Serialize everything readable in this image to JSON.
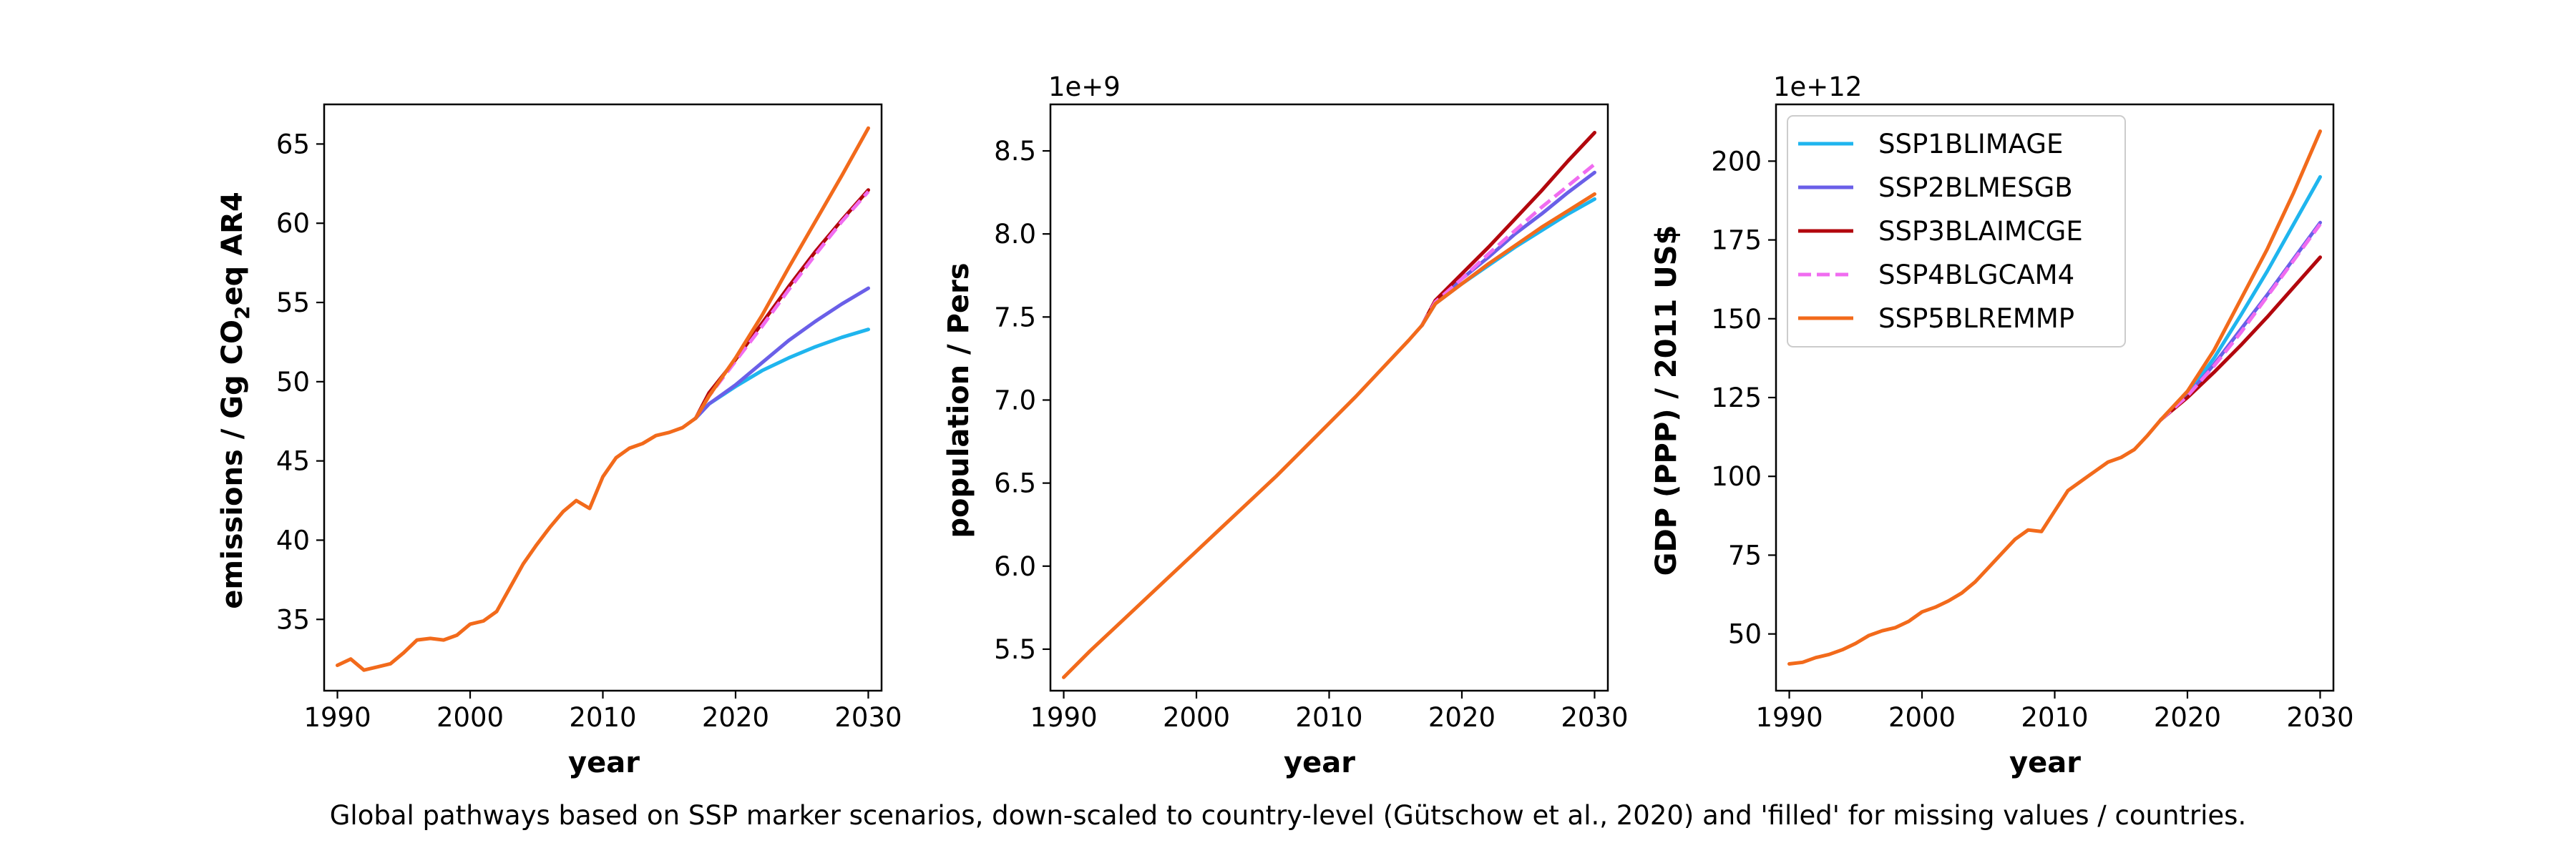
{
  "figure": {
    "caption": "Global pathways based on SSP marker scenarios, down-scaled to country-level (Gütschow et al., 2020) and 'filled' for missing values / countries."
  },
  "legend": {
    "placement": "top-left of third panel",
    "entries": [
      {
        "label": "SSP1BLIMAGE",
        "color": "#1fb5ee",
        "style": "solid"
      },
      {
        "label": "SSP2BLMESGB",
        "color": "#6a5fe8",
        "style": "solid"
      },
      {
        "label": "SSP3BLAIMCGE",
        "color": "#b2070d",
        "style": "solid"
      },
      {
        "label": "SSP4BLGCAM4",
        "color": "#f06cf0",
        "style": "dashed"
      },
      {
        "label": "SSP5BLREMMP",
        "color": "#f26a1b",
        "style": "solid"
      }
    ]
  },
  "chart_data": [
    {
      "type": "line",
      "xlabel": "year",
      "ylabel": "emissions / Gg CO2eq AR4",
      "ylabel_parts": {
        "before": "emissions / Gg CO",
        "sub": "2",
        "after": "eq AR4"
      },
      "xlim": [
        1989,
        2031
      ],
      "ylim": [
        30.5,
        67.5
      ],
      "xticks": [
        1990,
        2000,
        2010,
        2020,
        2030
      ],
      "yticks": [
        35,
        40,
        45,
        50,
        55,
        60,
        65
      ],
      "grid": false,
      "history": {
        "x": [
          1990,
          1991,
          1992,
          1993,
          1994,
          1995,
          1996,
          1997,
          1998,
          1999,
          2000,
          2001,
          2002,
          2003,
          2004,
          2005,
          2006,
          2007,
          2008,
          2009,
          2010,
          2011,
          2012,
          2013,
          2014,
          2015,
          2016,
          2017
        ],
        "y": [
          32.1,
          32.5,
          31.8,
          32.0,
          32.2,
          32.9,
          33.7,
          33.8,
          33.7,
          34.0,
          34.7,
          34.9,
          35.5,
          37.0,
          38.5,
          39.7,
          40.8,
          41.8,
          42.5,
          42.0,
          44.0,
          45.2,
          45.8,
          46.1,
          46.6,
          46.8,
          47.1,
          47.7
        ]
      },
      "series": [
        {
          "name": "SSP1BLIMAGE",
          "x": [
            2017,
            2018,
            2020,
            2022,
            2024,
            2026,
            2028,
            2030
          ],
          "y": [
            47.7,
            48.6,
            49.7,
            50.7,
            51.5,
            52.2,
            52.8,
            53.3
          ]
        },
        {
          "name": "SSP2BLMESGB",
          "x": [
            2017,
            2018,
            2020,
            2022,
            2024,
            2026,
            2028,
            2030
          ],
          "y": [
            47.7,
            48.6,
            49.8,
            51.2,
            52.6,
            53.8,
            54.9,
            55.9
          ]
        },
        {
          "name": "SSP3BLAIMCGE",
          "x": [
            2017,
            2018,
            2020,
            2022,
            2024,
            2026,
            2028,
            2030
          ],
          "y": [
            47.7,
            49.3,
            51.4,
            53.7,
            56.0,
            58.2,
            60.2,
            62.1
          ]
        },
        {
          "name": "SSP4BLGCAM4",
          "x": [
            2017,
            2018,
            2020,
            2022,
            2024,
            2026,
            2028,
            2030
          ],
          "y": [
            47.7,
            49.1,
            51.3,
            53.5,
            55.8,
            58.0,
            60.1,
            62.0
          ]
        },
        {
          "name": "SSP5BLREMMP",
          "x": [
            2017,
            2018,
            2020,
            2022,
            2024,
            2026,
            2028,
            2030
          ],
          "y": [
            47.7,
            49.1,
            51.5,
            54.2,
            57.2,
            60.1,
            63.0,
            66.0
          ]
        }
      ]
    },
    {
      "type": "line",
      "xlabel": "year",
      "ylabel": "population / Pers",
      "offset_label": "1e+9",
      "xlim": [
        1989,
        2031
      ],
      "ylim": [
        5.25,
        8.78
      ],
      "xticks": [
        1990,
        2000,
        2010,
        2020,
        2030
      ],
      "yticks": [
        5.5,
        6.0,
        6.5,
        7.0,
        7.5,
        8.0,
        8.5
      ],
      "grid": false,
      "history": {
        "x": [
          1990,
          1992,
          1994,
          1996,
          1998,
          2000,
          2002,
          2004,
          2006,
          2008,
          2010,
          2012,
          2014,
          2016,
          2017
        ],
        "y": [
          5.33,
          5.49,
          5.64,
          5.79,
          5.94,
          6.09,
          6.24,
          6.39,
          6.54,
          6.7,
          6.86,
          7.02,
          7.19,
          7.36,
          7.45
        ]
      },
      "series": [
        {
          "name": "SSP1BLIMAGE",
          "x": [
            2017,
            2018,
            2020,
            2022,
            2024,
            2026,
            2028,
            2030
          ],
          "y": [
            7.45,
            7.58,
            7.7,
            7.81,
            7.92,
            8.02,
            8.12,
            8.21
          ]
        },
        {
          "name": "SSP2BLMESGB",
          "x": [
            2017,
            2018,
            2020,
            2022,
            2024,
            2026,
            2028,
            2030
          ],
          "y": [
            7.45,
            7.59,
            7.73,
            7.86,
            8.0,
            8.12,
            8.25,
            8.37
          ]
        },
        {
          "name": "SSP3BLAIMCGE",
          "x": [
            2017,
            2018,
            2020,
            2022,
            2024,
            2026,
            2028,
            2030
          ],
          "y": [
            7.45,
            7.6,
            7.76,
            7.92,
            8.09,
            8.26,
            8.44,
            8.61
          ]
        },
        {
          "name": "SSP4BLGCAM4",
          "x": [
            2017,
            2018,
            2020,
            2022,
            2024,
            2026,
            2028,
            2030
          ],
          "y": [
            7.45,
            7.59,
            7.73,
            7.88,
            8.02,
            8.16,
            8.29,
            8.42
          ]
        },
        {
          "name": "SSP5BLREMMP",
          "x": [
            2017,
            2018,
            2020,
            2022,
            2024,
            2026,
            2028,
            2030
          ],
          "y": [
            7.45,
            7.58,
            7.7,
            7.82,
            7.93,
            8.04,
            8.14,
            8.24
          ]
        }
      ]
    },
    {
      "type": "line",
      "xlabel": "year",
      "ylabel": "GDP (PPP) / 2011 US$",
      "offset_label": "1e+12",
      "xlim": [
        1989,
        2031
      ],
      "ylim": [
        32,
        218
      ],
      "xticks": [
        1990,
        2000,
        2010,
        2020,
        2030
      ],
      "yticks": [
        50,
        75,
        100,
        125,
        150,
        175,
        200
      ],
      "grid": false,
      "history": {
        "x": [
          1990,
          1991,
          1992,
          1993,
          1994,
          1995,
          1996,
          1997,
          1998,
          1999,
          2000,
          2001,
          2002,
          2003,
          2004,
          2005,
          2006,
          2007,
          2008,
          2009,
          2010,
          2011,
          2012,
          2013,
          2014,
          2015,
          2016,
          2017,
          2018
        ],
        "y": [
          40.5,
          41.0,
          42.5,
          43.5,
          45.0,
          47.0,
          49.5,
          51.0,
          52.0,
          54.0,
          57.0,
          58.5,
          60.5,
          63.0,
          66.5,
          71.0,
          75.5,
          80.0,
          83.0,
          82.5,
          89.0,
          95.5,
          98.5,
          101.5,
          104.5,
          106.0,
          108.5,
          113.0,
          118.0
        ]
      },
      "series": [
        {
          "name": "SSP1BLIMAGE",
          "x": [
            2018,
            2020,
            2022,
            2024,
            2026,
            2028,
            2030
          ],
          "y": [
            118.0,
            126.0,
            137.5,
            151.0,
            165.0,
            180.0,
            195.0
          ]
        },
        {
          "name": "SSP2BLMESGB",
          "x": [
            2018,
            2020,
            2022,
            2024,
            2026,
            2028,
            2030
          ],
          "y": [
            118.0,
            125.5,
            135.5,
            146.5,
            157.5,
            169.0,
            180.5
          ]
        },
        {
          "name": "SSP3BLAIMCGE",
          "x": [
            2018,
            2020,
            2022,
            2024,
            2026,
            2028,
            2030
          ],
          "y": [
            118.0,
            125.0,
            133.0,
            141.5,
            150.5,
            160.0,
            169.5
          ]
        },
        {
          "name": "SSP4BLGCAM4",
          "x": [
            2018,
            2020,
            2022,
            2024,
            2026,
            2028,
            2030
          ],
          "y": [
            118.0,
            125.5,
            135.0,
            145.5,
            157.0,
            168.5,
            180.0
          ]
        },
        {
          "name": "SSP5BLREMMP",
          "x": [
            2018,
            2020,
            2022,
            2024,
            2026,
            2028,
            2030
          ],
          "y": [
            118.0,
            127.0,
            140.0,
            156.0,
            172.0,
            190.0,
            209.5
          ]
        }
      ]
    }
  ]
}
